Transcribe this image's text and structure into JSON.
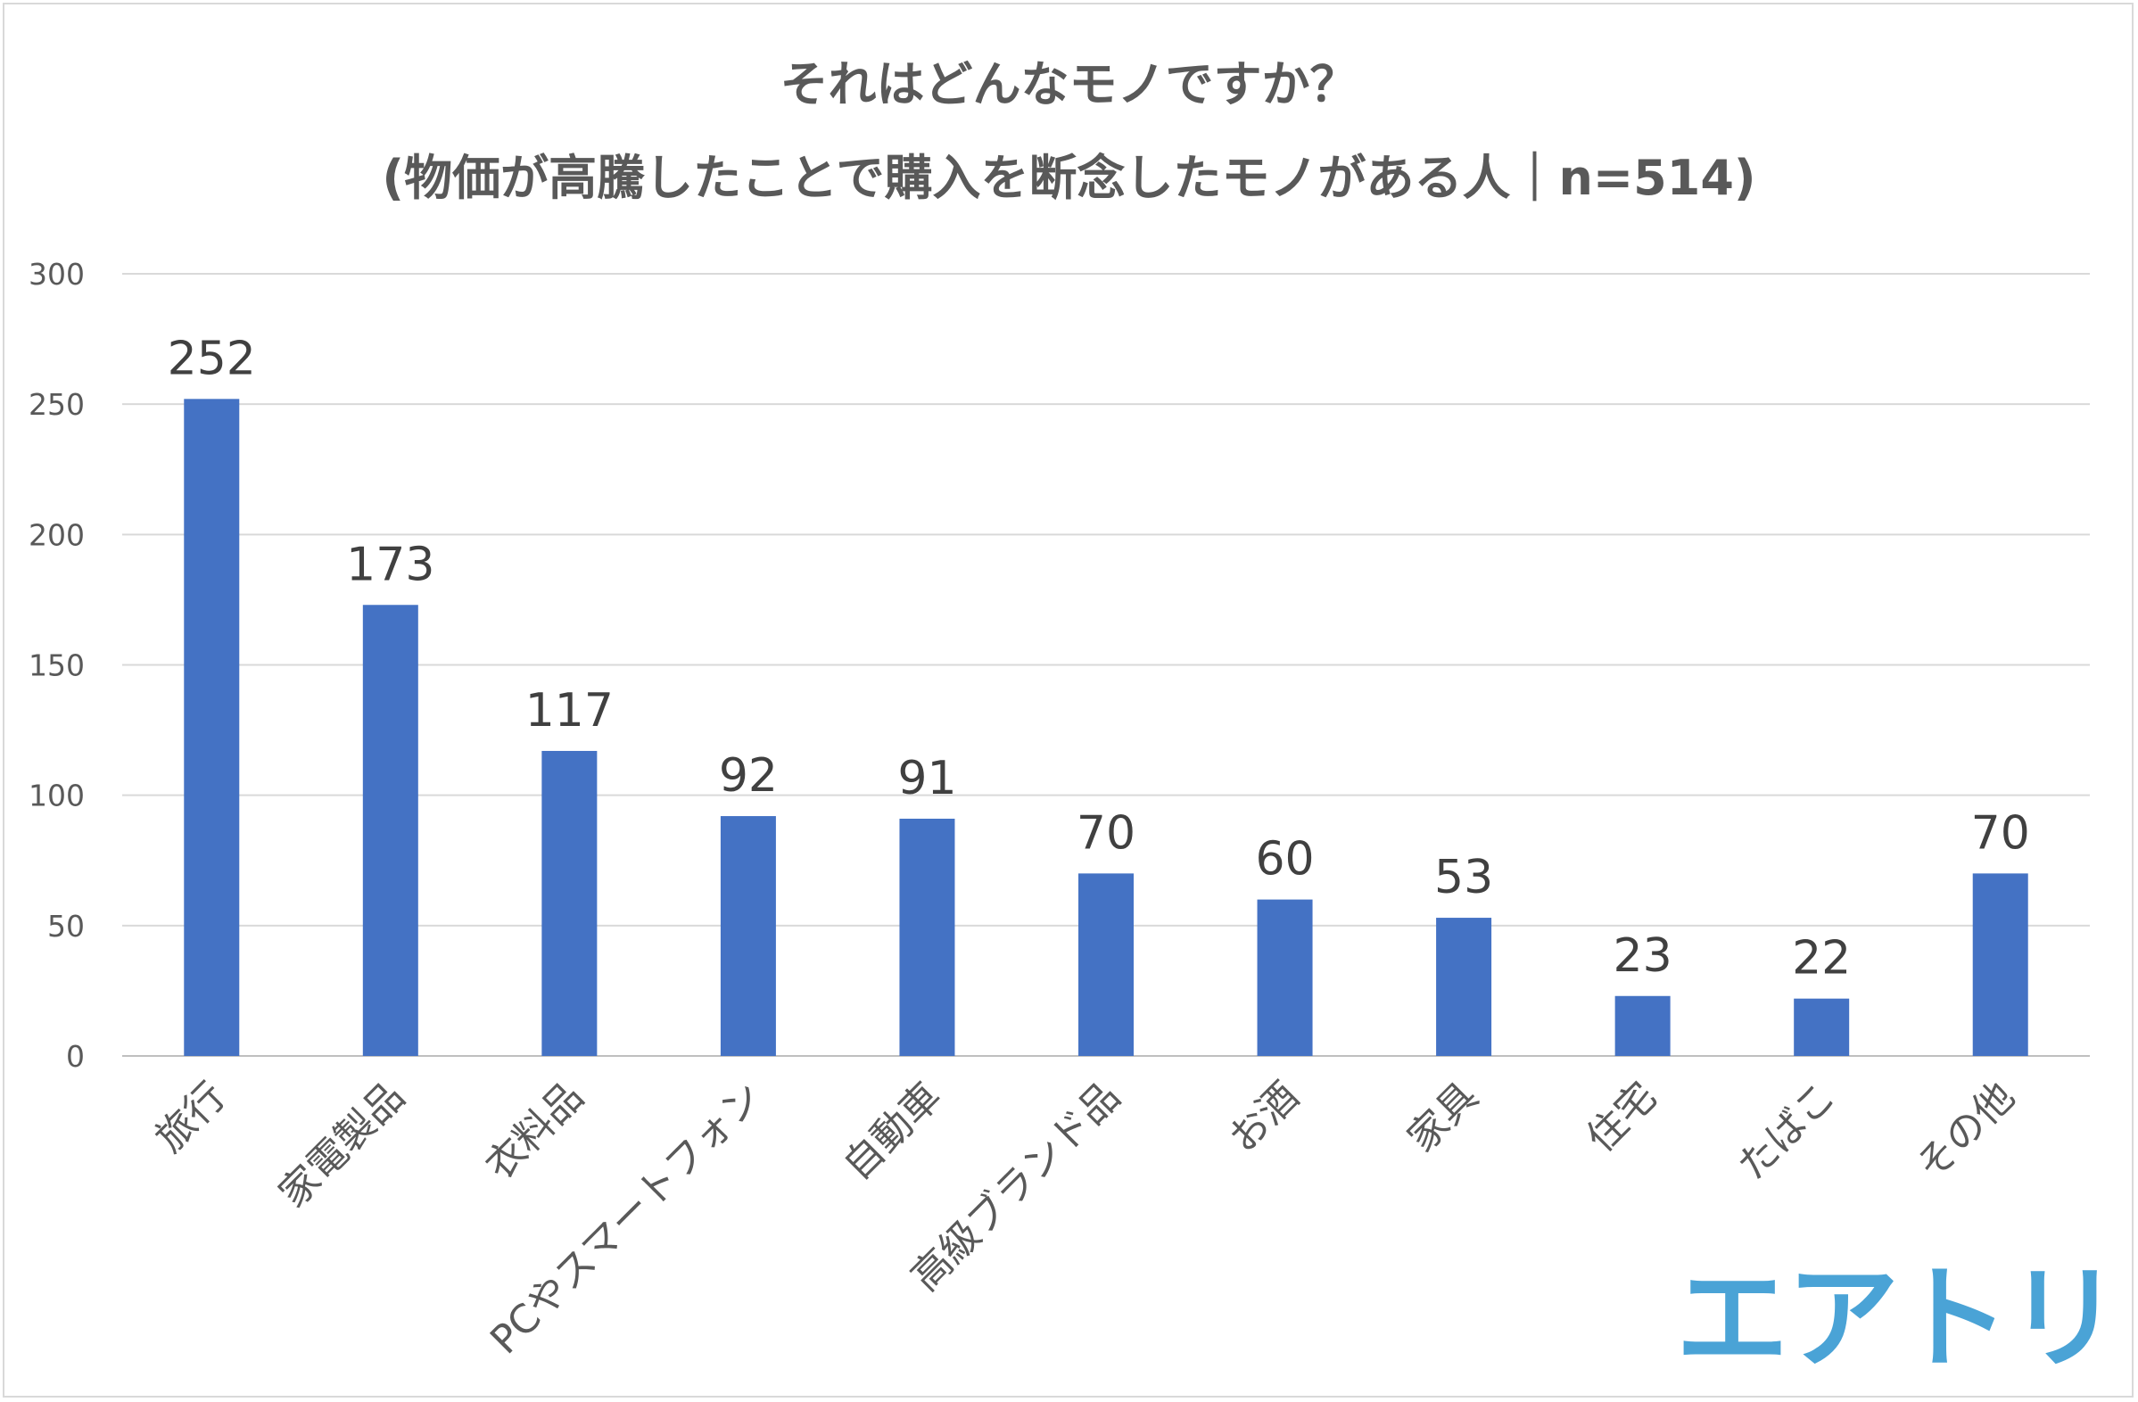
{
  "chart_data": {
    "type": "bar",
    "title": "それはどんなモノですか？",
    "subtitle": "(物価が高騰したことで購入を断念したモノがある人｜n=514)",
    "categories": [
      "旅行",
      "家電製品",
      "衣料品",
      "PCやスマートフォン",
      "自動車",
      "高級ブランド品",
      "お酒",
      "家具",
      "住宅",
      "たばこ",
      "その他"
    ],
    "values": [
      252,
      173,
      117,
      92,
      91,
      70,
      60,
      53,
      23,
      22,
      70
    ],
    "ylim": [
      0,
      300
    ],
    "yticks": [
      0,
      50,
      100,
      150,
      200,
      250,
      300
    ],
    "grid": true,
    "bar_color": "#4472c4",
    "data_labels": true
  },
  "logo": {
    "text": "エアトリ",
    "color": "#4aa3d6"
  }
}
